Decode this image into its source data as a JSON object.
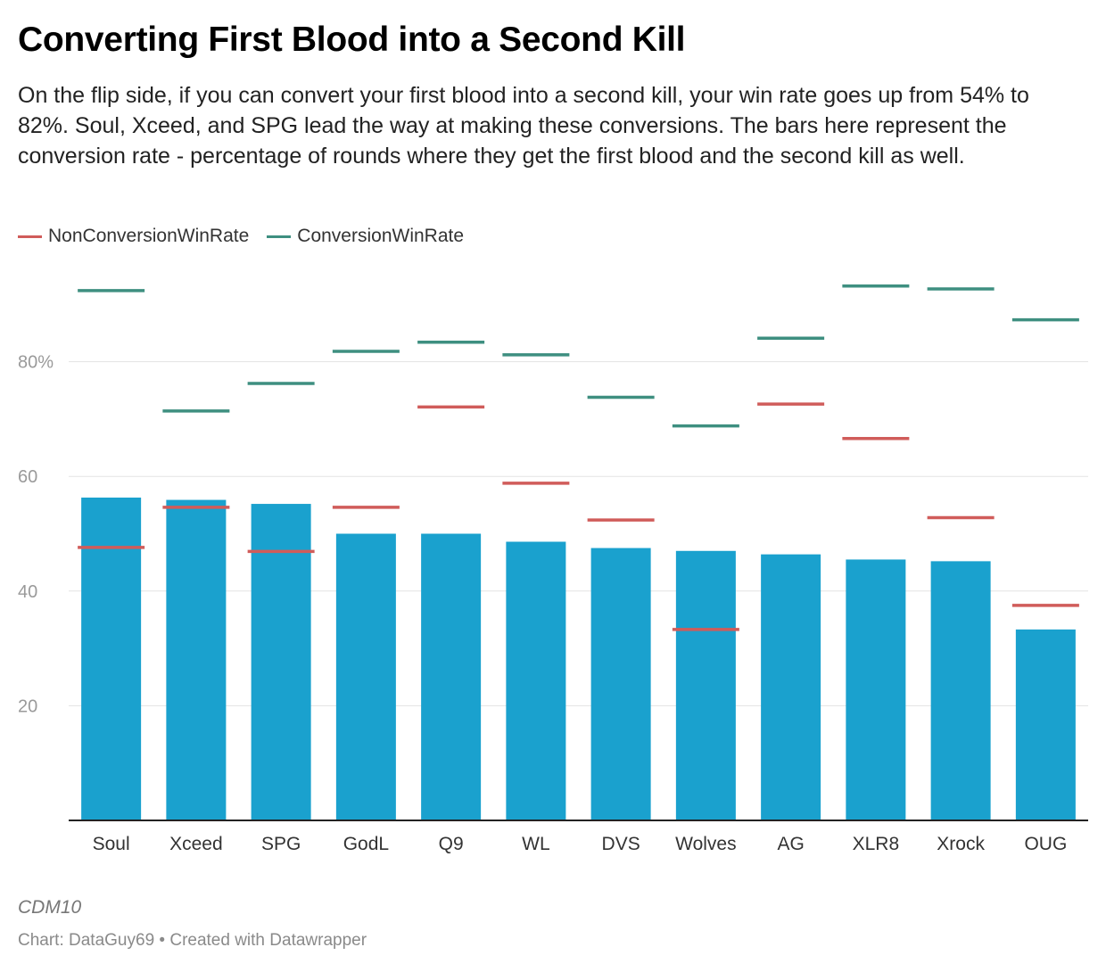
{
  "header": {
    "title": "Converting First Blood into a Second Kill",
    "subtitle": "On the flip side, if you can convert your first blood into a second kill, your win rate goes up from 54% to 82%. Soul, Xceed, and SPG lead the way at making these conversions. The bars here represent the conversion rate - percentage of rounds where they get the first blood and the second kill as well."
  },
  "legend": {
    "items": [
      {
        "label": "NonConversionWinRate",
        "color": "#d05c5a"
      },
      {
        "label": "ConversionWinRate",
        "color": "#3e8f80"
      }
    ]
  },
  "footer": {
    "notes": "CDM10",
    "credit": "Chart: DataGuy69 • Created with Datawrapper"
  },
  "chart_data": {
    "type": "bar",
    "categories": [
      "Soul",
      "Xceed",
      "SPG",
      "GodL",
      "Q9",
      "WL",
      "DVS",
      "Wolves",
      "AG",
      "XLR8",
      "Xrock",
      "OUG"
    ],
    "values": [
      56.3,
      55.9,
      55.2,
      50.0,
      50.0,
      48.6,
      47.5,
      47.0,
      46.4,
      45.5,
      45.2,
      33.3
    ],
    "bar_color": "#1aa1ce",
    "markers": [
      {
        "name": "NonConversionWinRate",
        "color": "#d05c5a",
        "values": [
          47.6,
          54.6,
          46.9,
          54.6,
          72.1,
          58.8,
          52.4,
          33.3,
          72.6,
          66.6,
          52.8,
          37.5
        ]
      },
      {
        "name": "ConversionWinRate",
        "color": "#3e8f80",
        "values": [
          92.4,
          71.4,
          76.2,
          81.8,
          83.4,
          81.2,
          73.8,
          68.8,
          84.1,
          93.2,
          92.7,
          87.3
        ]
      }
    ],
    "yticks": [
      {
        "value": 20,
        "label": "20"
      },
      {
        "value": 40,
        "label": "40"
      },
      {
        "value": 60,
        "label": "60"
      },
      {
        "value": 80,
        "label": "80%"
      }
    ],
    "ylim": [
      0,
      100
    ],
    "grid": true,
    "legend_position": "top-left"
  }
}
